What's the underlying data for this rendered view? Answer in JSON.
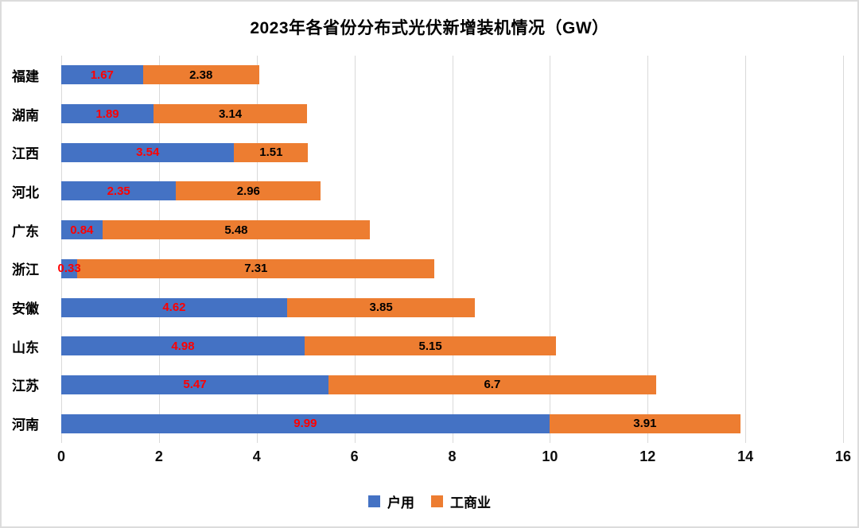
{
  "frame": {
    "background": "#ffffff",
    "border_color": "#dcdcdc"
  },
  "chart_data": {
    "type": "bar",
    "orientation": "horizontal",
    "stacked": true,
    "title": "2023年各省份分布式光伏新增装机情况（GW）",
    "categories": [
      "福建",
      "湖南",
      "江西",
      "河北",
      "广东",
      "浙江",
      "安徽",
      "山东",
      "江苏",
      "河南"
    ],
    "series": [
      {
        "name": "户用",
        "color": "#4472C4",
        "label_color": "#FF0000",
        "values": [
          1.67,
          1.89,
          3.54,
          2.35,
          0.84,
          0.33,
          4.62,
          4.98,
          5.47,
          9.99
        ]
      },
      {
        "name": "工商业",
        "color": "#ED7D31",
        "label_color": "#000000",
        "values": [
          2.38,
          3.14,
          1.51,
          2.96,
          5.48,
          7.31,
          3.85,
          5.15,
          6.7,
          3.91
        ]
      }
    ],
    "x_ticks": [
      0,
      2,
      4,
      6,
      8,
      10,
      12,
      14,
      16
    ],
    "xlim": [
      0,
      16
    ],
    "xlabel": "",
    "ylabel": "",
    "grid": true,
    "gridline_color": "#d9d9d9",
    "legend_position": "bottom"
  }
}
